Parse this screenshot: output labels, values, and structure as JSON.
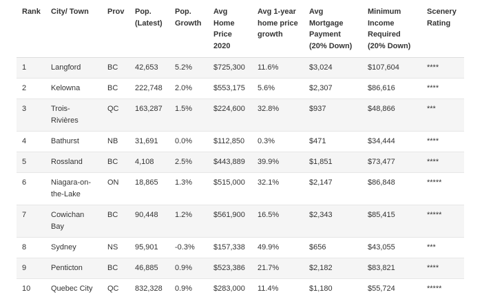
{
  "headers": [
    "Rank",
    "City/ Town",
    "Prov",
    "Pop. (Latest)",
    "Pop. Growth",
    "Avg Home Price 2020",
    "Avg 1-year home price growth",
    "Avg Mortgage Payment (20% Down)",
    "Minimum Income Required (20% Down)",
    "Scenery Rating"
  ],
  "rows": [
    [
      "1",
      "Langford",
      "BC",
      "42,653",
      "5.2%",
      "$725,300",
      "11.6%",
      "$3,024",
      "$107,604",
      "****"
    ],
    [
      "2",
      "Kelowna",
      "BC",
      "222,748",
      "2.0%",
      "$553,175",
      "5.6%",
      "$2,307",
      "$86,616",
      "****"
    ],
    [
      "3",
      "Trois-Rivières",
      "QC",
      "163,287",
      "1.5%",
      "$224,600",
      "32.8%",
      "$937",
      "$48,866",
      "***"
    ],
    [
      "4",
      "Bathurst",
      "NB",
      "31,691",
      "0.0%",
      "$112,850",
      "0.3%",
      "$471",
      "$34,444",
      "****"
    ],
    [
      "5",
      "Rossland",
      "BC",
      "4,108",
      "2.5%",
      "$443,889",
      "39.9%",
      "$1,851",
      "$73,477",
      "****"
    ],
    [
      "6",
      "Niagara-on-the-Lake",
      "ON",
      "18,865",
      "1.3%",
      "$515,000",
      "32.1%",
      "$2,147",
      "$86,848",
      "*****"
    ],
    [
      "7",
      "Cowichan Bay",
      "BC",
      "90,448",
      "1.2%",
      "$561,900",
      "16.5%",
      "$2,343",
      "$85,415",
      "*****"
    ],
    [
      "8",
      "Sydney",
      "NS",
      "95,901",
      "-0.3%",
      "$157,338",
      "49.9%",
      "$656",
      "$43,055",
      "***"
    ],
    [
      "9",
      "Penticton",
      "BC",
      "46,885",
      "0.9%",
      "$523,386",
      "21.7%",
      "$2,182",
      "$83,821",
      "****"
    ],
    [
      "10",
      "Quebec City",
      "QC",
      "832,328",
      "0.9%",
      "$283,000",
      "11.4%",
      "$1,180",
      "$55,724",
      "*****"
    ]
  ]
}
